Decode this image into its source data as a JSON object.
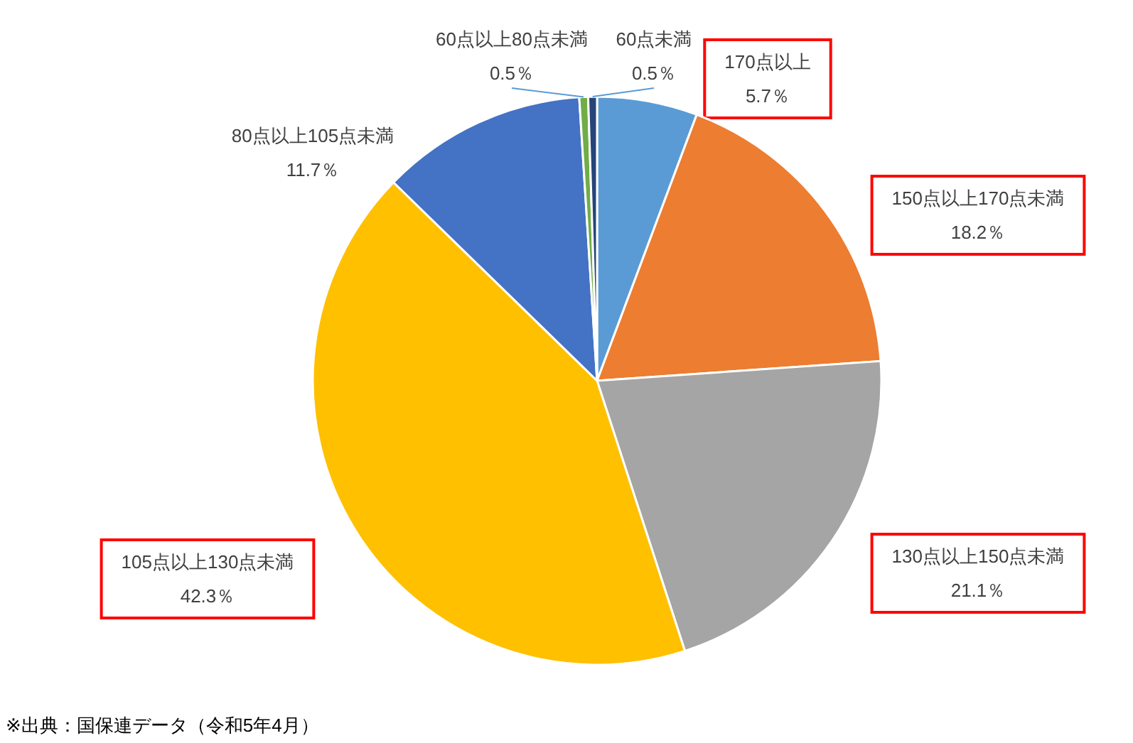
{
  "chart_data": {
    "type": "pie",
    "categories": [
      "170点以上",
      "150点以上170点未満",
      "130点以上150点未満",
      "105点以上130点未満",
      "80点以上105点未満",
      "60点以上80点未満",
      "60点未満"
    ],
    "values": [
      5.7,
      18.2,
      21.1,
      42.3,
      11.7,
      0.5,
      0.5
    ],
    "value_labels": [
      "5.7％",
      "18.2％",
      "21.1％",
      "42.3％",
      "11.7％",
      "0.5％",
      "0.5％"
    ],
    "colors": [
      "#5b9bd5",
      "#ed7d31",
      "#a5a5a5",
      "#ffc000",
      "#4472c4",
      "#70ad47",
      "#264478"
    ],
    "annotations": [
      "※出典：国保連データ（令和5年4月）"
    ]
  }
}
